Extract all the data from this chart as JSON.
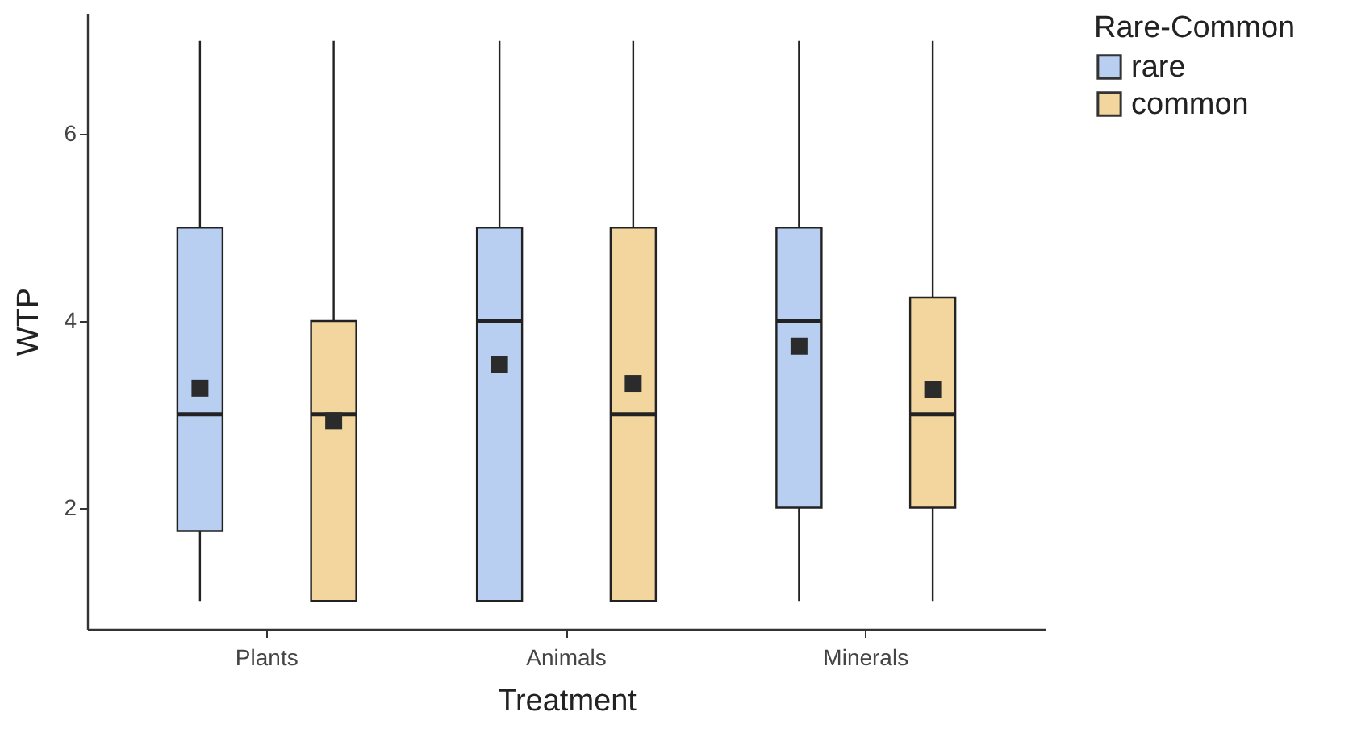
{
  "chart_data": {
    "type": "box",
    "xlabel": "Treatment",
    "ylabel": "WTP",
    "legend_title": "Rare-Common",
    "legend": "right",
    "grid": false,
    "marker": "square",
    "categories": [
      "Plants",
      "Animals",
      "Minerals"
    ],
    "ylim": [
      0.7,
      7.3
    ],
    "yticks": [
      2,
      4,
      6
    ],
    "series": [
      {
        "name": "rare",
        "color": "#b8cff2",
        "boxes": [
          {
            "low": 1,
            "q1": 1.75,
            "median": 3,
            "q3": 5,
            "high": 7,
            "mean": 3.28
          },
          {
            "low": 1,
            "q1": 1,
            "median": 4,
            "q3": 5,
            "high": 7,
            "mean": 3.53
          },
          {
            "low": 1,
            "q1": 2,
            "median": 4,
            "q3": 5,
            "high": 7,
            "mean": 3.73
          }
        ]
      },
      {
        "name": "common",
        "color": "#f2d69e",
        "boxes": [
          {
            "low": 1,
            "q1": 1,
            "median": 3,
            "q3": 4,
            "high": 7,
            "mean": 2.93
          },
          {
            "low": 1,
            "q1": 1,
            "median": 3,
            "q3": 5,
            "high": 7,
            "mean": 3.33
          },
          {
            "low": 1,
            "q1": 2,
            "median": 3,
            "q3": 4.25,
            "high": 7,
            "mean": 3.27
          }
        ]
      }
    ]
  }
}
